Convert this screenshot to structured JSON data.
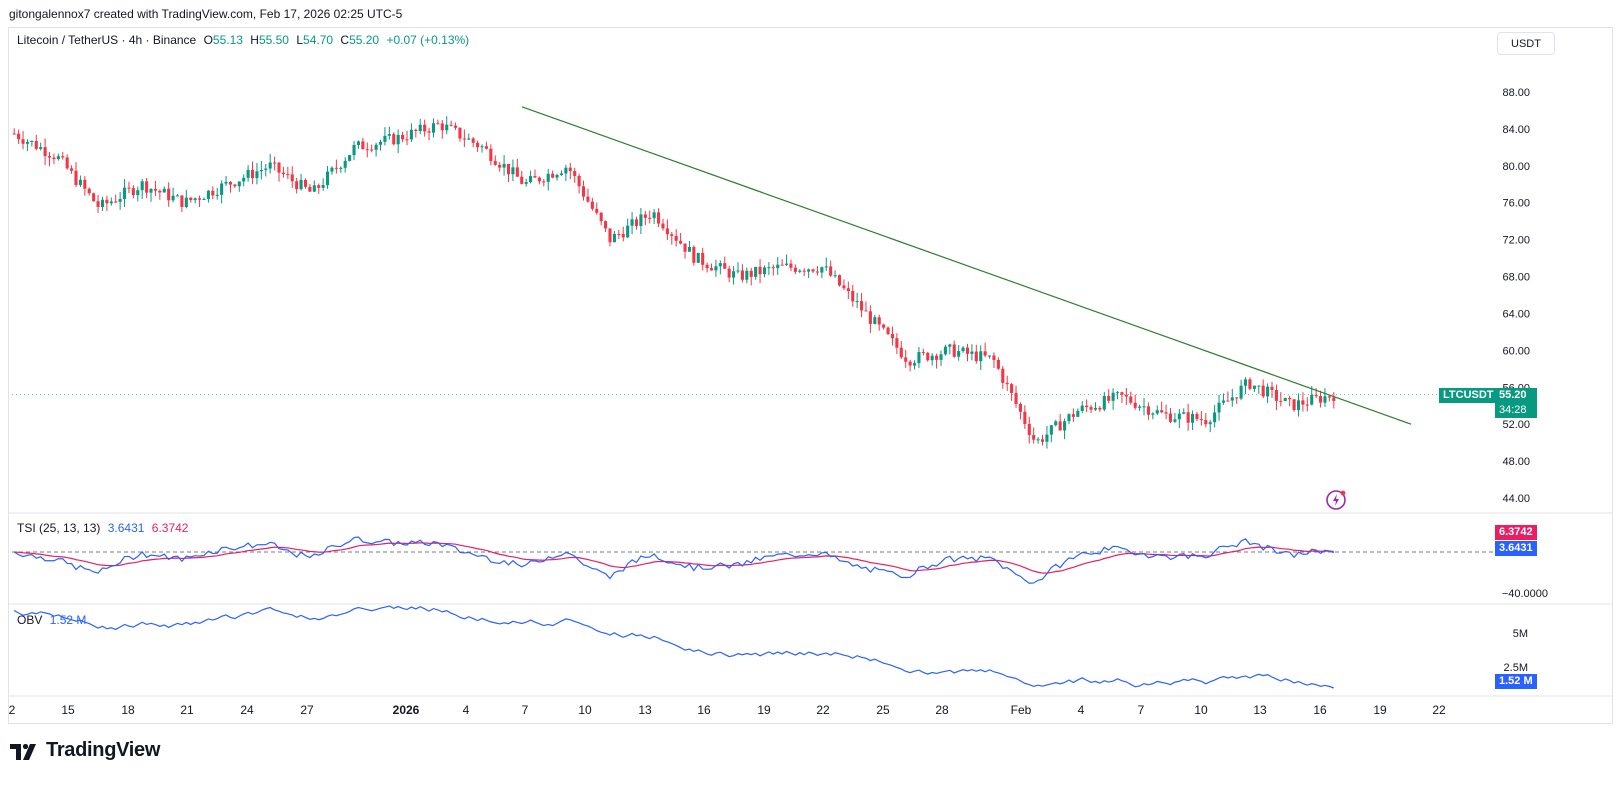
{
  "header": {
    "attribution": "gitongalennox7 created with TradingView.com, Feb 17, 2026 02:25 UTC-5"
  },
  "legend": {
    "symbol": "Litecoin / TetherUS · 4h · Binance",
    "open_label": "O",
    "open": "55.13",
    "high_label": "H",
    "high": "55.50",
    "low_label": "L",
    "low": "54.70",
    "close_label": "C",
    "close": "55.20",
    "change": "+0.07 (+0.13%)"
  },
  "currency_button": "USDT",
  "price_axis": {
    "ticks": [
      "88.00",
      "84.00",
      "80.00",
      "76.00",
      "72.00",
      "68.00",
      "64.00",
      "60.00",
      "56.00",
      "52.00",
      "48.00",
      "44.00"
    ]
  },
  "price_tag": {
    "symbol": "LTCUSDT",
    "price": "55.20",
    "countdown": "34:28"
  },
  "tsi": {
    "label": "TSI (25, 13, 13)",
    "tsi_value": "3.6431",
    "signal_value": "6.3742",
    "axis_tick": "−40.0000"
  },
  "obv": {
    "label": "OBV",
    "value": "1.52 M",
    "axis_ticks": [
      "5M",
      "2.5M"
    ],
    "tag": "1.52 M"
  },
  "time_axis": {
    "ticks": [
      "2",
      "15",
      "18",
      "21",
      "24",
      "27",
      "2026",
      "4",
      "7",
      "10",
      "13",
      "16",
      "19",
      "22",
      "25",
      "28",
      "Feb",
      "4",
      "7",
      "10",
      "13",
      "16",
      "19",
      "22"
    ]
  },
  "brand": "TradingView",
  "colors": {
    "up": "#089981",
    "down": "#f23645",
    "trendline": "#2e7d32",
    "tsi": "#2962ff",
    "signal": "#e91e63",
    "obv": "#2962ff"
  },
  "chart_data": {
    "type": "candlestick",
    "title": "Litecoin / TetherUS · 4h · Binance",
    "ylim": [
      43,
      91
    ],
    "keypoints": [
      {
        "x": "Jan 12",
        "y": 83.5
      },
      {
        "x": "Jan 13",
        "y": 81
      },
      {
        "x": "Jan 18",
        "y": 75.5
      },
      {
        "x": "Jan 21",
        "y": 78
      },
      {
        "x": "Jan 24",
        "y": 76
      },
      {
        "x": "Jan 26",
        "y": 78
      },
      {
        "x": "Jan 27",
        "y": 80
      },
      {
        "x": "Jan 30",
        "y": 77
      },
      {
        "x": "Jan 31",
        "y": 82
      },
      {
        "x": "Jan 2 2026",
        "y": 83
      },
      {
        "x": "Jan 6",
        "y": 84.5
      },
      {
        "x": "Jan 9",
        "y": 82
      },
      {
        "x": "Jan 12",
        "y": 78
      },
      {
        "x": "Jan 14",
        "y": 80
      },
      {
        "x": "Jan 15",
        "y": 72
      },
      {
        "x": "Jan 17",
        "y": 75
      },
      {
        "x": "Jan 18",
        "y": 70
      },
      {
        "x": "Jan 22",
        "y": 68
      },
      {
        "x": "Jan 25",
        "y": 69
      },
      {
        "x": "Jan 28",
        "y": 69
      },
      {
        "x": "Jan 30",
        "y": 64
      },
      {
        "x": "Feb 1",
        "y": 59
      },
      {
        "x": "Feb 2",
        "y": 60
      },
      {
        "x": "Feb 4",
        "y": 59
      },
      {
        "x": "Feb 5",
        "y": 50
      },
      {
        "x": "Feb 6",
        "y": 53.5
      },
      {
        "x": "Feb 7",
        "y": 55
      },
      {
        "x": "Feb 10",
        "y": 53
      },
      {
        "x": "Feb 12",
        "y": 52.5
      },
      {
        "x": "Feb 14",
        "y": 56.5
      },
      {
        "x": "Feb 16",
        "y": 54
      },
      {
        "x": "Feb 17",
        "y": 55.2
      }
    ],
    "trendline": [
      {
        "x": "Jan 6",
        "y": 86.4
      },
      {
        "x": "Feb 20",
        "y": 52
      }
    ],
    "tsi_series": [
      {
        "name": "TSI",
        "last": 3.6431
      },
      {
        "name": "Signal",
        "last": 6.3742
      }
    ],
    "obv_last": "1.52 M"
  }
}
